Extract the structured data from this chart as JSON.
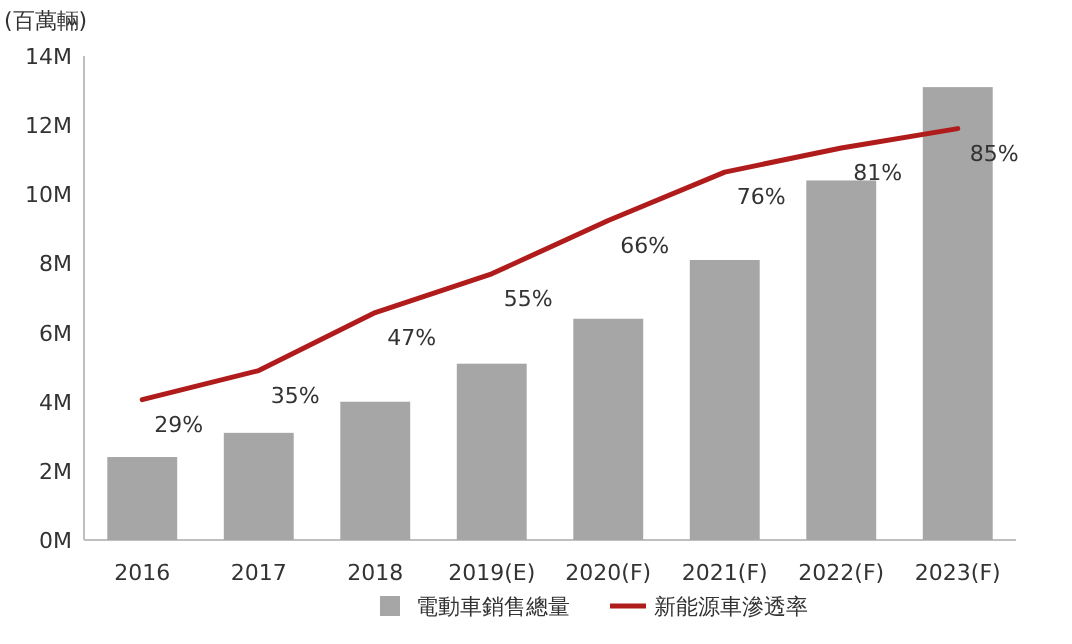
{
  "chart_data": {
    "type": "bar",
    "ylabel": "(百萬輛)",
    "categories": [
      "2016",
      "2017",
      "2018",
      "2019(E)",
      "2020(F)",
      "2021(F)",
      "2022(F)",
      "2023(F)"
    ],
    "series": [
      {
        "name": "電動車銷售總量",
        "color": "#a6a6a6",
        "values": [
          2.4,
          3.1,
          4.0,
          5.1,
          6.4,
          8.1,
          10.4,
          13.1
        ]
      },
      {
        "name": "新能源車滲透率",
        "type": "line",
        "axis": "y2",
        "color": "#b01c1c",
        "values": [
          29,
          35,
          47,
          55,
          66,
          76,
          81,
          85
        ],
        "value_labels": [
          "29%",
          "35%",
          "47%",
          "55%",
          "66%",
          "76%",
          "81%",
          "85%"
        ]
      }
    ],
    "ylim": [
      0,
      14
    ],
    "yticks": [
      {
        "value": 0,
        "label": "0M"
      },
      {
        "value": 2,
        "label": "2M"
      },
      {
        "value": 4,
        "label": "4M"
      },
      {
        "value": 6,
        "label": "6M"
      },
      {
        "value": 8,
        "label": "8M"
      },
      {
        "value": 10,
        "label": "10M"
      },
      {
        "value": 12,
        "label": "12M"
      },
      {
        "value": 14,
        "label": "14M"
      }
    ],
    "y2lim": [
      0,
      100
    ],
    "legend": "bottom",
    "marker": "none",
    "line_style": "solid"
  }
}
